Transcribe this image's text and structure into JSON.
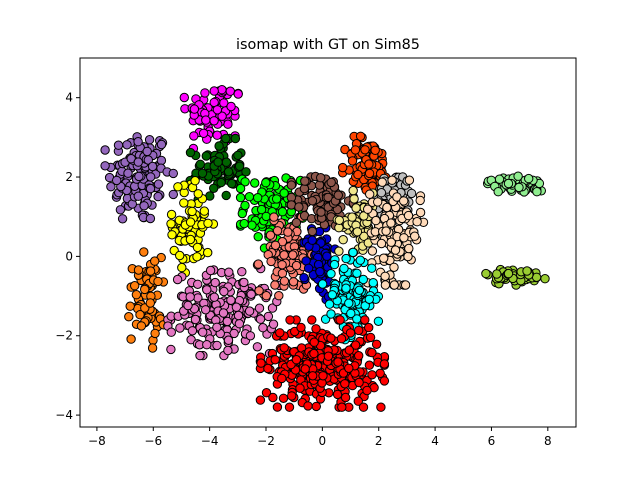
{
  "chart_data": {
    "type": "scatter",
    "title": "isomap with GT on Sim85",
    "xlabel": "",
    "ylabel": "",
    "xlim": [
      -8.6,
      9.0
    ],
    "ylim": [
      -4.3,
      5.0
    ],
    "xticks": [
      -8,
      -6,
      -4,
      -2,
      0,
      2,
      4,
      6,
      8
    ],
    "yticks": [
      -4,
      -2,
      0,
      2,
      4
    ],
    "xtick_labels": [
      "−8",
      "−6",
      "−4",
      "−2",
      "0",
      "2",
      "4",
      "6",
      "8"
    ],
    "ytick_labels": [
      "−4",
      "−2",
      "0",
      "2",
      "4"
    ],
    "grid": false,
    "legend": "none",
    "marker_edge": "#000000",
    "clusters": [
      {
        "name": "purple",
        "color": "#9467bd",
        "center": [
          -6.5,
          2.0
        ],
        "spread": [
          0.55,
          0.6
        ],
        "count": 130
      },
      {
        "name": "magenta",
        "color": "#ff00ff",
        "center": [
          -3.8,
          3.6
        ],
        "spread": [
          0.5,
          0.4
        ],
        "count": 70
      },
      {
        "name": "dark-green",
        "color": "#006400",
        "center": [
          -3.7,
          2.2
        ],
        "spread": [
          0.45,
          0.35
        ],
        "count": 75
      },
      {
        "name": "yellow",
        "color": "#ffff00",
        "center": [
          -4.6,
          0.8
        ],
        "spread": [
          0.35,
          0.55
        ],
        "count": 70
      },
      {
        "name": "orange",
        "color": "#ff7f0e",
        "center": [
          -6.3,
          -1.1
        ],
        "spread": [
          0.3,
          0.55
        ],
        "count": 70
      },
      {
        "name": "pink",
        "color": "#e377c2",
        "center": [
          -3.5,
          -1.4
        ],
        "spread": [
          0.9,
          0.5
        ],
        "count": 180
      },
      {
        "name": "lime",
        "color": "#00ff00",
        "center": [
          -1.8,
          1.2
        ],
        "spread": [
          0.5,
          0.45
        ],
        "count": 110
      },
      {
        "name": "salmon",
        "color": "#fa8072",
        "center": [
          -1.2,
          0.0
        ],
        "spread": [
          0.5,
          0.45
        ],
        "count": 110
      },
      {
        "name": "blue",
        "color": "#0000cd",
        "center": [
          -0.1,
          -0.1
        ],
        "spread": [
          0.25,
          0.45
        ],
        "count": 80
      },
      {
        "name": "brown",
        "color": "#8c564b",
        "center": [
          0.0,
          1.4
        ],
        "spread": [
          0.5,
          0.35
        ],
        "count": 100
      },
      {
        "name": "orange-red",
        "color": "#ff4500",
        "center": [
          1.6,
          2.3
        ],
        "spread": [
          0.4,
          0.35
        ],
        "count": 90
      },
      {
        "name": "silver",
        "color": "#c0c0c0",
        "center": [
          2.6,
          1.5
        ],
        "spread": [
          0.35,
          0.3
        ],
        "count": 50
      },
      {
        "name": "khaki",
        "color": "#f0e68c",
        "center": [
          1.3,
          0.9
        ],
        "spread": [
          0.35,
          0.35
        ],
        "count": 60
      },
      {
        "name": "bisque",
        "color": "#ffdab9",
        "center": [
          2.6,
          0.6
        ],
        "spread": [
          0.45,
          0.6
        ],
        "count": 130
      },
      {
        "name": "cyan",
        "color": "#00ffff",
        "center": [
          1.0,
          -1.0
        ],
        "spread": [
          0.45,
          0.5
        ],
        "count": 110
      },
      {
        "name": "red",
        "color": "#ff0000",
        "center": [
          0.0,
          -2.7
        ],
        "spread": [
          1.0,
          0.5
        ],
        "count": 320
      },
      {
        "name": "light-green",
        "color": "#90ee90",
        "center": [
          6.9,
          1.8
        ],
        "spread": [
          0.5,
          0.1
        ],
        "count": 50
      },
      {
        "name": "yellow-green",
        "color": "#9acd32",
        "center": [
          6.8,
          -0.5
        ],
        "spread": [
          0.5,
          0.1
        ],
        "count": 60
      }
    ]
  }
}
